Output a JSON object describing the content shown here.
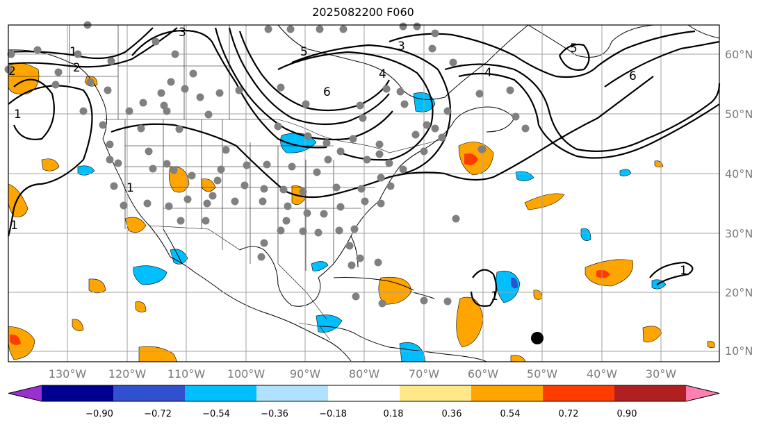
{
  "title": "2025082200 F060",
  "longitude_labels": [
    "130°W",
    "120°W",
    "110°W",
    "100°W",
    "90°W",
    "80°W",
    "70°W",
    "60°W",
    "50°W",
    "40°W",
    "30°W"
  ],
  "latitude_labels": [
    "60°N",
    "50°N",
    "40°N",
    "30°N",
    "20°N",
    "10°N"
  ],
  "colorbar": {
    "ticks": [
      "−0.90",
      "−0.72",
      "−0.54",
      "−0.36",
      "−0.18",
      "0.18",
      "0.36",
      "0.54",
      "0.72",
      "0.90"
    ],
    "colors": [
      "#9b30d0",
      "#000090",
      "#3050d0",
      "#00bfff",
      "#b0e2ff",
      "#ffffff",
      "#ffe88a",
      "#ffa500",
      "#ff3c00",
      "#b02020",
      "#ff80b0"
    ]
  },
  "contour_labels": [
    "1",
    "2",
    "3",
    "4",
    "5",
    "6",
    "5",
    "6",
    "4",
    "3",
    "2",
    "1",
    "1",
    "1",
    "1",
    "1"
  ],
  "colors": {
    "land_border": "#000000",
    "grid": "#a0a0a0",
    "station": "#808080",
    "marker": "#000000"
  }
}
